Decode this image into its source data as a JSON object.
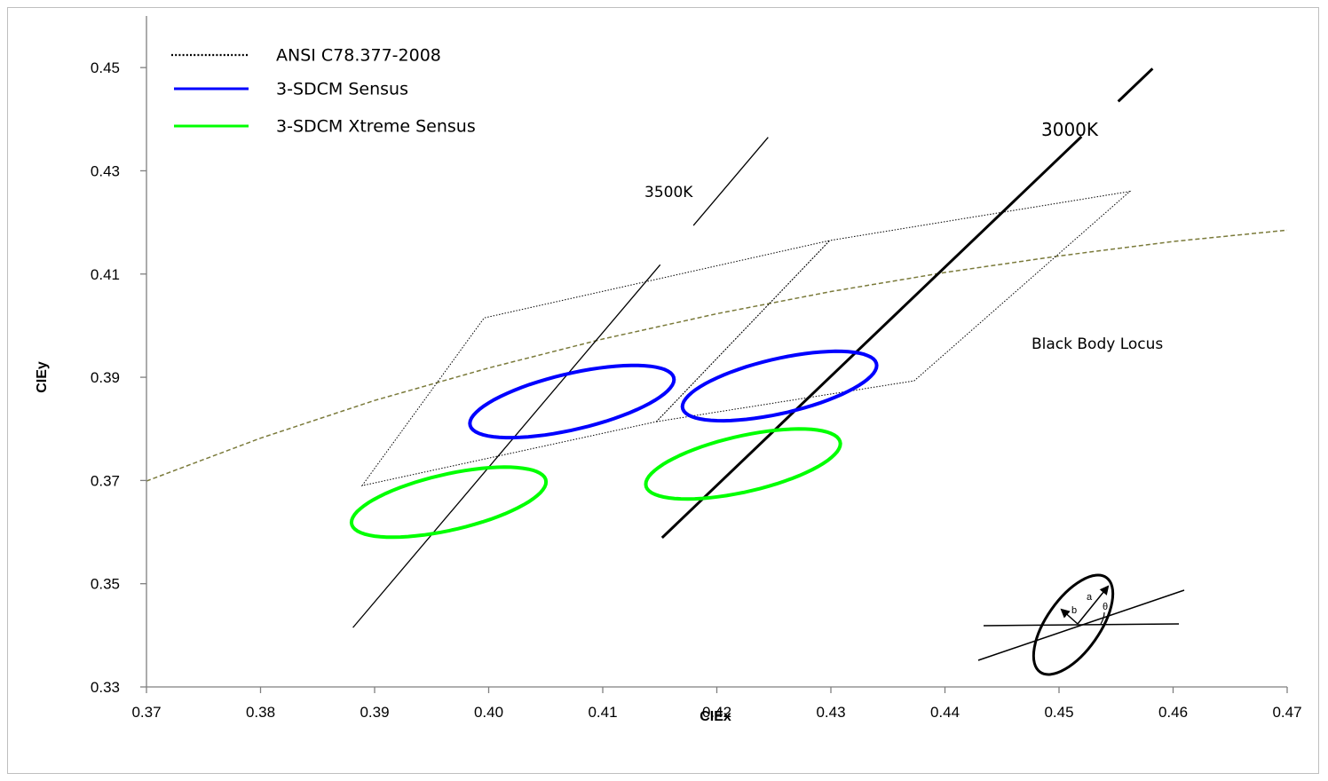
{
  "chart_data": {
    "type": "scatter",
    "xlabel": "CIEx",
    "ylabel": "CIEy",
    "xlim": [
      0.37,
      0.47
    ],
    "ylim": [
      0.33,
      0.46
    ],
    "x_ticks": [
      "0.37",
      "0.38",
      "0.39",
      "0.40",
      "0.41",
      "0.42",
      "0.43",
      "0.44",
      "0.45",
      "0.46",
      "0.47"
    ],
    "y_ticks": [
      "0.33",
      "0.35",
      "0.37",
      "0.39",
      "0.41",
      "0.43",
      "0.45"
    ],
    "grid": false,
    "legend_position": "top-left",
    "legend": [
      {
        "label": "ANSI C78.377-2008",
        "style": "dotted",
        "color": "#000000"
      },
      {
        "label": "3-SDCM Sensus",
        "style": "solid",
        "color": "#0000ff"
      },
      {
        "label": "3-SDCM Xtreme Sensus",
        "style": "solid",
        "color": "#00ff00"
      }
    ],
    "annotations": {
      "cct_3500": "3500K",
      "cct_3000": "3000K",
      "locus": "Black Body Locus",
      "inset_a": "a",
      "inset_b": "b",
      "inset_theta": "θ"
    },
    "ansi_quads": [
      {
        "points": [
          [
            0.3889,
            0.369
          ],
          [
            0.3996,
            0.4015
          ],
          [
            0.4299,
            0.4165
          ],
          [
            0.4147,
            0.3814
          ]
        ]
      },
      {
        "points": [
          [
            0.4147,
            0.3814
          ],
          [
            0.4299,
            0.4165
          ],
          [
            0.4562,
            0.426
          ],
          [
            0.4373,
            0.3893
          ]
        ]
      }
    ],
    "cct_lines": [
      {
        "label": "3500K",
        "weight": "thin",
        "from": [
          0.3881,
          0.3415
        ],
        "to": [
          0.4245,
          0.4365
        ]
      },
      {
        "label": "3000K",
        "weight": "thick",
        "from": [
          0.4152,
          0.3589
        ],
        "to": [
          0.4582,
          0.4498
        ]
      }
    ],
    "black_body_locus": {
      "style": "dashed",
      "color": "#7a7a3a",
      "points": [
        [
          0.37,
          0.3699
        ],
        [
          0.38,
          0.3782
        ],
        [
          0.39,
          0.3855
        ],
        [
          0.4,
          0.3918
        ],
        [
          0.41,
          0.3974
        ],
        [
          0.42,
          0.4023
        ],
        [
          0.43,
          0.4066
        ],
        [
          0.44,
          0.4103
        ],
        [
          0.45,
          0.4135
        ],
        [
          0.46,
          0.4163
        ],
        [
          0.47,
          0.4185
        ]
      ]
    },
    "ellipses": [
      {
        "series": "3-SDCM Sensus",
        "color": "#0000ff",
        "center": [
          0.4073,
          0.3853
        ],
        "a": 0.01,
        "b": 0.0045,
        "theta_deg": 30
      },
      {
        "series": "3-SDCM Sensus",
        "color": "#0000ff",
        "center": [
          0.4255,
          0.3883
        ],
        "a": 0.0095,
        "b": 0.0044,
        "theta_deg": 30
      },
      {
        "series": "3-SDCM Xtreme Sensus",
        "color": "#00ff00",
        "center": [
          0.3965,
          0.3658
        ],
        "a": 0.0095,
        "b": 0.0045,
        "theta_deg": 30
      },
      {
        "series": "3-SDCM Xtreme Sensus",
        "color": "#00ff00",
        "center": [
          0.4223,
          0.3732
        ],
        "a": 0.0095,
        "b": 0.0045,
        "theta_deg": 30
      }
    ]
  }
}
